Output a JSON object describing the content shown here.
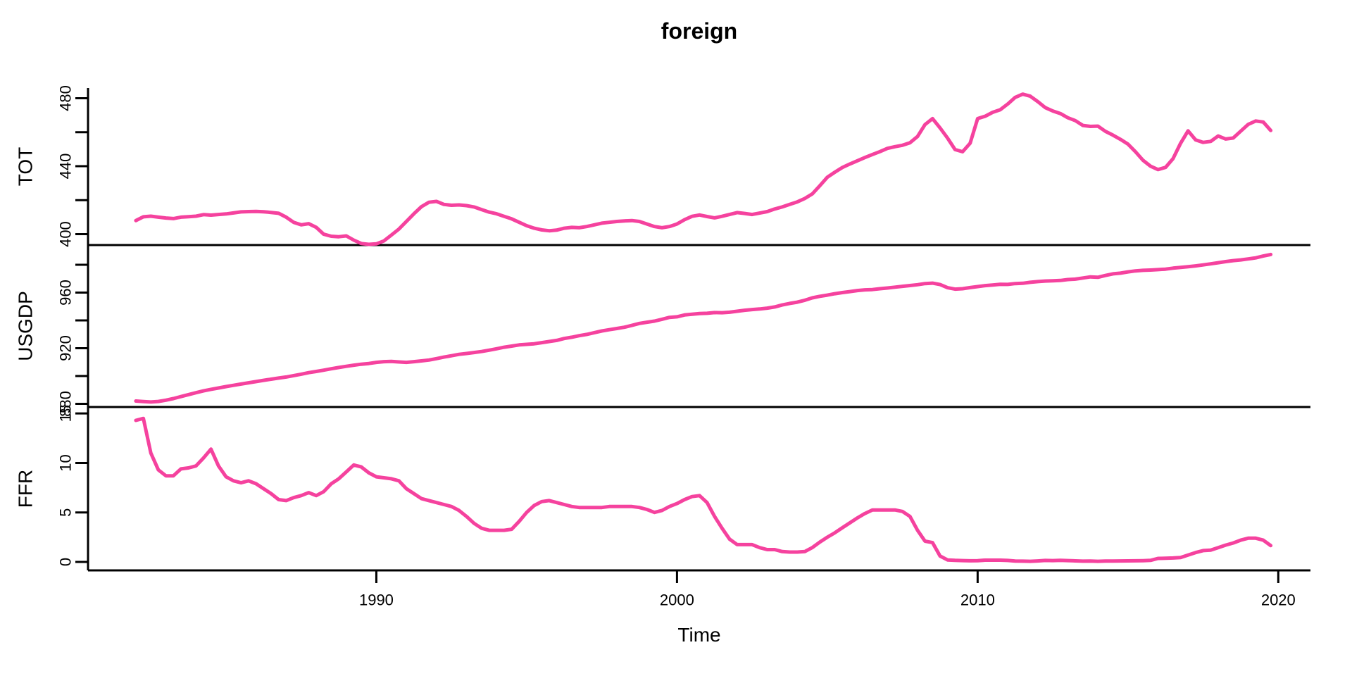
{
  "title": "foreign",
  "xlabel": "Time",
  "line_color": "#F5429E",
  "axis_color": "#000000",
  "chart_data": {
    "type": "line",
    "title": "foreign",
    "xlabel": "Time",
    "x_frequency": "quarterly",
    "x_start": 1982.0,
    "x_step": 0.25,
    "x_end": 2019.75,
    "x_domain": [
      1980.41,
      2021.07
    ],
    "x_ticks": [
      1990,
      2000,
      2010,
      2020
    ],
    "grid": false,
    "legend_position": "none",
    "panels": [
      {
        "name": "TOT",
        "ylim": [
          393.6,
          486.0
        ],
        "yticks": [
          400,
          420,
          440,
          460,
          480
        ],
        "ytick_labels": [
          "400",
          "",
          "440",
          "",
          "480"
        ],
        "values": [
          408.0,
          410.2,
          410.6,
          410.0,
          409.5,
          409.2,
          410.0,
          410.3,
          410.6,
          411.5,
          411.2,
          411.6,
          411.9,
          412.5,
          413.1,
          413.3,
          413.4,
          413.2,
          412.8,
          412.3,
          410.0,
          407.0,
          405.5,
          406.2,
          404.0,
          400.0,
          398.8,
          398.5,
          399.0,
          396.5,
          394.5,
          394.0,
          394.3,
          396.0,
          399.5,
          403.0,
          407.5,
          412.0,
          416.2,
          418.8,
          419.3,
          417.5,
          417.0,
          417.2,
          416.8,
          416.0,
          414.5,
          413.0,
          412.0,
          410.5,
          409.0,
          407.0,
          405.0,
          403.5,
          402.5,
          402.0,
          402.4,
          403.5,
          404.0,
          403.8,
          404.5,
          405.5,
          406.5,
          407.0,
          407.5,
          407.8,
          408.0,
          407.5,
          406.0,
          404.5,
          403.8,
          404.5,
          406.0,
          408.5,
          410.5,
          411.3,
          410.4,
          409.6,
          410.5,
          411.6,
          412.7,
          412.2,
          411.6,
          412.4,
          413.3,
          414.8,
          416.0,
          417.5,
          419.0,
          421.0,
          423.7,
          428.5,
          433.5,
          436.5,
          439.2,
          441.3,
          443.2,
          445.1,
          446.9,
          448.6,
          450.5,
          451.5,
          452.3,
          453.8,
          457.5,
          464.5,
          468.0,
          462.5,
          456.5,
          449.8,
          448.5,
          453.5,
          468.0,
          469.4,
          471.7,
          473.2,
          476.6,
          480.5,
          482.4,
          481.2,
          478.0,
          474.5,
          472.5,
          471.0,
          468.5,
          466.8,
          464.0,
          463.4,
          463.6,
          460.5,
          458.3,
          455.8,
          453.0,
          448.5,
          443.5,
          440.0,
          438.0,
          439.3,
          444.5,
          453.5,
          460.8,
          455.5,
          454.0,
          454.6,
          457.8,
          456.0,
          456.6,
          460.6,
          464.6,
          466.6,
          466.0,
          461.0
        ]
      },
      {
        "name": "USGDP",
        "ylim": [
          877.7,
          994.2
        ],
        "yticks": [
          880,
          900,
          920,
          940,
          960,
          980
        ],
        "ytick_labels": [
          "880",
          "",
          "920",
          "",
          "960",
          ""
        ],
        "values": [
          882.0,
          881.6,
          881.3,
          881.7,
          882.6,
          883.8,
          885.2,
          886.6,
          888.0,
          889.3,
          890.4,
          891.4,
          892.4,
          893.3,
          894.2,
          895.1,
          896.0,
          896.9,
          897.7,
          898.5,
          899.3,
          900.3,
          901.3,
          902.4,
          903.3,
          904.2,
          905.2,
          906.1,
          907.0,
          907.8,
          908.5,
          909.0,
          909.8,
          910.3,
          910.5,
          910.1,
          909.8,
          910.3,
          910.9,
          911.5,
          912.5,
          913.6,
          914.6,
          915.6,
          916.2,
          916.9,
          917.6,
          918.6,
          919.6,
          920.7,
          921.5,
          922.4,
          922.8,
          923.2,
          924.0,
          924.8,
          925.6,
          927.0,
          927.9,
          929.0,
          929.9,
          931.2,
          932.4,
          933.3,
          934.2,
          935.1,
          936.4,
          937.8,
          938.7,
          939.5,
          940.8,
          942.2,
          942.6,
          943.9,
          944.4,
          944.9,
          945.1,
          945.6,
          945.5,
          945.9,
          946.6,
          947.3,
          947.8,
          948.2,
          948.8,
          949.7,
          951.1,
          952.2,
          953.1,
          954.5,
          956.2,
          957.3,
          958.2,
          959.2,
          960.0,
          960.7,
          961.5,
          962.0,
          962.2,
          962.8,
          963.3,
          963.9,
          964.5,
          965.1,
          965.7,
          966.5,
          966.8,
          965.8,
          963.5,
          962.5,
          962.8,
          963.6,
          964.3,
          965.0,
          965.5,
          966.0,
          965.9,
          966.5,
          966.7,
          967.4,
          967.9,
          968.3,
          968.5,
          968.7,
          969.4,
          969.7,
          970.5,
          971.3,
          971.0,
          972.3,
          973.5,
          974.0,
          974.9,
          975.6,
          976.0,
          976.2,
          976.5,
          976.9,
          977.6,
          978.1,
          978.6,
          979.2,
          979.9,
          980.7,
          981.5,
          982.3,
          983.0,
          983.5,
          984.2,
          985.0,
          986.3,
          987.4
        ]
      },
      {
        "name": "FFR",
        "ylim": [
          -0.85,
          15.65
        ],
        "yticks": [
          0,
          5,
          10,
          15
        ],
        "ytick_labels": [
          "0",
          "5",
          "10",
          "15"
        ],
        "values": [
          14.3,
          14.5,
          11.0,
          9.3,
          8.7,
          8.7,
          9.4,
          9.5,
          9.7,
          10.5,
          11.4,
          9.7,
          8.6,
          8.2,
          8.0,
          8.2,
          7.9,
          7.4,
          6.9,
          6.3,
          6.2,
          6.5,
          6.7,
          7.0,
          6.7,
          7.1,
          7.9,
          8.4,
          9.1,
          9.8,
          9.6,
          9.0,
          8.6,
          8.5,
          8.4,
          8.2,
          7.4,
          6.9,
          6.4,
          6.2,
          6.0,
          5.8,
          5.6,
          5.2,
          4.6,
          3.9,
          3.4,
          3.2,
          3.2,
          3.2,
          3.3,
          4.1,
          5.0,
          5.7,
          6.1,
          6.2,
          6.0,
          5.8,
          5.6,
          5.5,
          5.5,
          5.5,
          5.5,
          5.6,
          5.6,
          5.6,
          5.6,
          5.5,
          5.3,
          5.0,
          5.2,
          5.6,
          5.9,
          6.3,
          6.6,
          6.7,
          6.0,
          4.6,
          3.4,
          2.3,
          1.75,
          1.75,
          1.75,
          1.45,
          1.25,
          1.25,
          1.05,
          1.0,
          1.0,
          1.05,
          1.45,
          2.0,
          2.5,
          2.95,
          3.45,
          3.95,
          4.45,
          4.9,
          5.25,
          5.25,
          5.25,
          5.25,
          5.1,
          4.6,
          3.2,
          2.1,
          1.95,
          0.6,
          0.2,
          0.16,
          0.14,
          0.12,
          0.13,
          0.18,
          0.18,
          0.18,
          0.15,
          0.09,
          0.08,
          0.07,
          0.1,
          0.15,
          0.14,
          0.16,
          0.14,
          0.11,
          0.08,
          0.09,
          0.07,
          0.09,
          0.09,
          0.1,
          0.11,
          0.12,
          0.13,
          0.16,
          0.36,
          0.37,
          0.4,
          0.45,
          0.7,
          0.95,
          1.15,
          1.2,
          1.45,
          1.7,
          1.92,
          2.2,
          2.4,
          2.4,
          2.2,
          1.65
        ]
      }
    ]
  }
}
